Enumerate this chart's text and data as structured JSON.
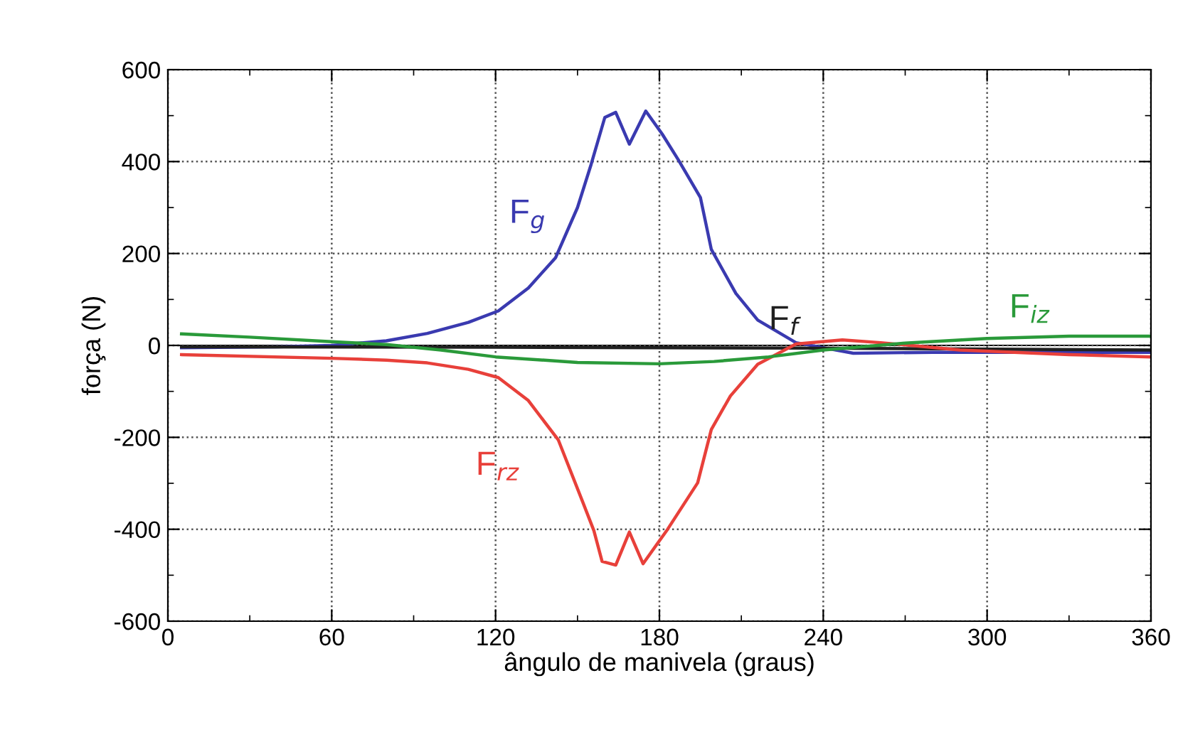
{
  "chart_data": {
    "type": "line",
    "xlabel": "ângulo de manivela (graus)",
    "ylabel": "força (N)",
    "xlim": [
      0,
      360
    ],
    "xticks": [
      0,
      60,
      120,
      180,
      240,
      300,
      360
    ],
    "ylim": [
      -600,
      600
    ],
    "yticks": [
      -600,
      -400,
      -200,
      0,
      200,
      400,
      600
    ],
    "grid": true,
    "line_style": "solid",
    "series": [
      {
        "name": "F$_{g}$",
        "color": "#3a3ab0",
        "x": [
          5,
          40,
          60,
          80,
          95,
          110,
          121,
          132,
          142,
          150,
          155,
          160,
          164,
          169,
          175,
          181,
          187,
          195,
          199,
          208,
          216,
          230,
          251,
          280,
          320,
          360
        ],
        "values": [
          -5,
          -3,
          0,
          10,
          26,
          50,
          75,
          125,
          191,
          300,
          394,
          496,
          507,
          438,
          510,
          460,
          403,
          322,
          209,
          113,
          55,
          6,
          -17,
          -15,
          -15,
          -15
        ]
      },
      {
        "name": "F$_{f}$",
        "color": "#202020",
        "x": [
          5,
          120,
          240,
          360
        ],
        "values": [
          -3,
          -4,
          -6,
          -10
        ]
      },
      {
        "name": "F$_{rz}$",
        "color": "#e8403a",
        "x": [
          5,
          60,
          80,
          95,
          110,
          121,
          132,
          143,
          152,
          156,
          159,
          164,
          169,
          174,
          183,
          194,
          199,
          206,
          216,
          230,
          247,
          261,
          290,
          330,
          360
        ],
        "values": [
          -20,
          -28,
          -32,
          -38,
          -52,
          -70,
          -120,
          -206,
          -342,
          -403,
          -470,
          -478,
          -406,
          -475,
          -400,
          -299,
          -183,
          -110,
          -41,
          3,
          12,
          6,
          -10,
          -20,
          -25
        ]
      },
      {
        "name": "F$_{iz}$",
        "color": "#2a9a3a",
        "x": [
          5,
          30,
          60,
          80,
          100,
          120,
          150,
          180,
          200,
          220,
          240,
          270,
          300,
          330,
          360
        ],
        "values": [
          25,
          18,
          8,
          2,
          -10,
          -25,
          -37,
          -40,
          -35,
          -25,
          -10,
          5,
          15,
          20,
          20
        ]
      }
    ]
  }
}
